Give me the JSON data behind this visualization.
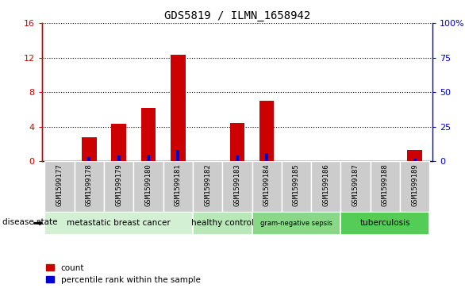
{
  "title": "GDS5819 / ILMN_1658942",
  "samples": [
    "GSM1599177",
    "GSM1599178",
    "GSM1599179",
    "GSM1599180",
    "GSM1599181",
    "GSM1599182",
    "GSM1599183",
    "GSM1599184",
    "GSM1599185",
    "GSM1599186",
    "GSM1599187",
    "GSM1599188",
    "GSM1599189"
  ],
  "count_values": [
    0,
    2.8,
    4.3,
    6.2,
    12.3,
    0,
    4.4,
    7.0,
    0,
    0,
    0,
    0,
    1.3
  ],
  "percentile_values": [
    0,
    3.3,
    4.1,
    5.0,
    8.1,
    0,
    4.2,
    5.8,
    0,
    0,
    0,
    0,
    2.0
  ],
  "bar_color": "#cc0000",
  "percentile_color": "#0000cc",
  "ylim_left": [
    0,
    16
  ],
  "ylim_right": [
    0,
    100
  ],
  "yticks_left": [
    0,
    4,
    8,
    12,
    16
  ],
  "yticks_right": [
    0,
    25,
    50,
    75,
    100
  ],
  "ytick_labels_left": [
    "0",
    "4",
    "8",
    "12",
    "16"
  ],
  "ytick_labels_right": [
    "0",
    "25",
    "50",
    "75",
    "100%"
  ],
  "disease_groups": [
    {
      "label": "metastatic breast cancer",
      "start": 0,
      "end": 5,
      "color": "#d4f0d4"
    },
    {
      "label": "healthy control",
      "start": 5,
      "end": 7,
      "color": "#b8e8b8"
    },
    {
      "label": "gram-negative sepsis",
      "start": 7,
      "end": 10,
      "color": "#88d888"
    },
    {
      "label": "tuberculosis",
      "start": 10,
      "end": 13,
      "color": "#55cc55"
    }
  ],
  "disease_state_label": "disease state",
  "legend_count": "count",
  "legend_percentile": "percentile rank within the sample",
  "bar_width": 0.5,
  "background_color": "#ffffff",
  "label_bg_color": "#cccccc",
  "grid_color": "#000000",
  "tick_color_left": "#cc0000",
  "tick_color_right": "#0000cc"
}
